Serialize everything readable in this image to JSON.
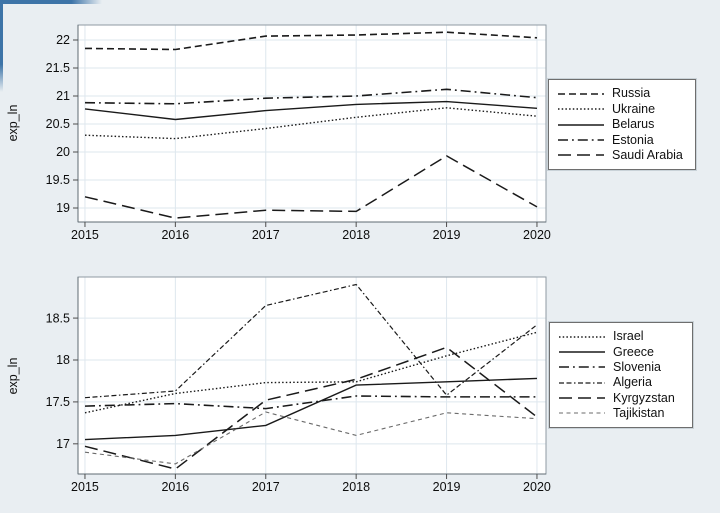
{
  "figure": {
    "ylabel": "exp_ln",
    "background_color": "#e9eef2",
    "plot_background": "#ffffff",
    "grid_color": "#dee7ee",
    "box_color": "#8f9aa3",
    "tick_color": "#4d4d4d",
    "line_color": "#1a1a1a",
    "accent_corner_color": "#3d74a8"
  },
  "chart_data": [
    {
      "type": "line",
      "panel": "top",
      "ylabel": "exp_ln",
      "x": [
        2015,
        2016,
        2017,
        2018,
        2019,
        2020
      ],
      "xticks": [
        "2015",
        "2016",
        "2017",
        "2018",
        "2019",
        "2020"
      ],
      "yticks": [
        19,
        19.5,
        20,
        20.5,
        21,
        21.5,
        22
      ],
      "ylim": [
        18.75,
        22.268
      ],
      "xlim": [
        2014.923,
        2020.1
      ],
      "grid": true,
      "legend_position": "right",
      "series": [
        {
          "name": "Russia",
          "style": "dash",
          "values": [
            21.85,
            21.83,
            22.07,
            22.09,
            22.14,
            22.04
          ]
        },
        {
          "name": "Ukraine",
          "style": "dot",
          "values": [
            20.3,
            20.24,
            20.42,
            20.62,
            20.79,
            20.64
          ]
        },
        {
          "name": "Belarus",
          "style": "solid",
          "values": [
            20.77,
            20.58,
            20.74,
            20.85,
            20.9,
            20.78
          ]
        },
        {
          "name": "Estonia",
          "style": "dash_dot",
          "values": [
            20.88,
            20.86,
            20.96,
            21.0,
            21.12,
            20.97
          ]
        },
        {
          "name": "Saudi Arabia",
          "style": "longdash",
          "values": [
            19.2,
            18.82,
            18.96,
            18.94,
            19.93,
            19.02
          ]
        }
      ]
    },
    {
      "type": "line",
      "panel": "bottom",
      "ylabel": "exp_ln",
      "x": [
        2015,
        2016,
        2017,
        2018,
        2019,
        2020
      ],
      "xticks": [
        "2015",
        "2016",
        "2017",
        "2018",
        "2019",
        "2020"
      ],
      "yticks": [
        17,
        17.5,
        18,
        18.5
      ],
      "ylim": [
        16.64,
        18.99
      ],
      "xlim": [
        2014.923,
        2020.1
      ],
      "grid": true,
      "legend_position": "right",
      "series": [
        {
          "name": "Israel",
          "style": "dot",
          "values": [
            17.37,
            17.6,
            17.73,
            17.74,
            18.05,
            18.33
          ]
        },
        {
          "name": "Greece",
          "style": "solid",
          "values": [
            17.05,
            17.1,
            17.22,
            17.7,
            17.74,
            17.78
          ]
        },
        {
          "name": "Slovenia",
          "style": "dash_dot",
          "values": [
            17.45,
            17.48,
            17.42,
            17.57,
            17.56,
            17.56
          ]
        },
        {
          "name": "Algeria",
          "style": "dash_dash_dot",
          "values": [
            17.55,
            17.63,
            18.65,
            18.9,
            17.58,
            18.42
          ]
        },
        {
          "name": "Kyrgyzstan",
          "style": "longdash",
          "values": [
            16.97,
            16.7,
            17.52,
            17.77,
            18.15,
            17.32
          ]
        },
        {
          "name": "Tajikistan",
          "style": "shortdash",
          "values": [
            16.9,
            16.76,
            17.38,
            17.1,
            17.37,
            17.3
          ]
        }
      ]
    }
  ]
}
